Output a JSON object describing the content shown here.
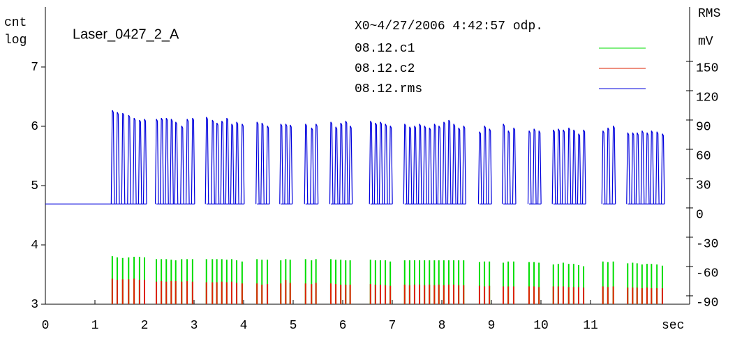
{
  "chart_data": {
    "type": "spike",
    "title": "Laser_0427_2_A",
    "subtitle": "X0~4/27/2006 4:42:57 odp.",
    "y_label": [
      "cnt",
      "log"
    ],
    "y2_label": [
      "RMS",
      "mV"
    ],
    "x_label": "sec",
    "xlim": [
      0,
      13
    ],
    "xticks": [
      0,
      1,
      2,
      3,
      4,
      5,
      6,
      7,
      8,
      9,
      10,
      11
    ],
    "ylim": [
      3,
      8
    ],
    "yticks": [
      3,
      4,
      5,
      6,
      7
    ],
    "y2lim": [
      -98.6,
      205
    ],
    "y2ticks": [
      -90,
      -60,
      -30,
      0,
      30,
      60,
      90,
      120,
      150
    ],
    "x": [
      1.35,
      1.45,
      1.56,
      1.68,
      1.79,
      1.9,
      2.0,
      2.24,
      2.34,
      2.44,
      2.54,
      2.63,
      2.75,
      2.86,
      2.97,
      3.25,
      3.37,
      3.46,
      3.56,
      3.66,
      3.76,
      3.86,
      3.97,
      4.27,
      4.37,
      4.48,
      4.75,
      4.85,
      4.94,
      5.25,
      5.37,
      5.46,
      5.76,
      5.86,
      5.96,
      6.06,
      6.15,
      6.56,
      6.66,
      6.76,
      6.86,
      6.96,
      7.25,
      7.35,
      7.45,
      7.55,
      7.65,
      7.75,
      7.85,
      7.94,
      8.04,
      8.14,
      8.24,
      8.34,
      8.44,
      8.76,
      8.86,
      8.96,
      9.24,
      9.34,
      9.45,
      9.76,
      9.86,
      9.96,
      10.25,
      10.35,
      10.45,
      10.56,
      10.66,
      10.76,
      10.86,
      11.25,
      11.35,
      11.46,
      11.75,
      11.85,
      11.94,
      12.04,
      12.14,
      12.23,
      12.34,
      12.45
    ],
    "series": [
      {
        "name": "08.12.c1",
        "color": "#00dd00",
        "axis": "y",
        "values": [
          3.81,
          3.79,
          3.78,
          3.79,
          3.8,
          3.8,
          3.79,
          3.76,
          3.76,
          3.76,
          3.75,
          3.74,
          3.76,
          3.76,
          3.76,
          3.76,
          3.76,
          3.76,
          3.76,
          3.75,
          3.76,
          3.74,
          3.72,
          3.76,
          3.75,
          3.75,
          3.74,
          3.76,
          3.75,
          3.76,
          3.74,
          3.76,
          3.76,
          3.75,
          3.75,
          3.74,
          3.74,
          3.75,
          3.74,
          3.74,
          3.74,
          3.72,
          3.74,
          3.74,
          3.74,
          3.74,
          3.74,
          3.74,
          3.74,
          3.74,
          3.74,
          3.74,
          3.74,
          3.74,
          3.74,
          3.71,
          3.72,
          3.72,
          3.7,
          3.72,
          3.72,
          3.71,
          3.71,
          3.7,
          3.67,
          3.68,
          3.7,
          3.68,
          3.68,
          3.66,
          3.64,
          3.72,
          3.71,
          3.72,
          3.69,
          3.7,
          3.69,
          3.67,
          3.68,
          3.68,
          3.67,
          3.65
        ]
      },
      {
        "name": "08.12.c2",
        "color": "#dd2200",
        "axis": "y",
        "values": [
          3.43,
          3.41,
          3.42,
          3.42,
          3.43,
          3.41,
          3.41,
          3.38,
          3.39,
          3.38,
          3.39,
          3.39,
          3.38,
          3.39,
          3.38,
          3.37,
          3.37,
          3.37,
          3.38,
          3.37,
          3.38,
          3.36,
          3.35,
          3.35,
          3.33,
          3.34,
          3.35,
          3.41,
          3.36,
          3.35,
          3.34,
          3.36,
          3.35,
          3.34,
          3.33,
          3.33,
          3.33,
          3.34,
          3.33,
          3.33,
          3.32,
          3.31,
          3.33,
          3.32,
          3.33,
          3.33,
          3.32,
          3.33,
          3.32,
          3.33,
          3.32,
          3.33,
          3.33,
          3.32,
          3.32,
          3.31,
          3.3,
          3.31,
          3.3,
          3.3,
          3.3,
          3.3,
          3.3,
          3.29,
          3.3,
          3.3,
          3.3,
          3.29,
          3.29,
          3.29,
          3.28,
          3.3,
          3.29,
          3.3,
          3.28,
          3.28,
          3.28,
          3.27,
          3.28,
          3.27,
          3.27,
          3.27
        ]
      },
      {
        "name": "08.12.rms",
        "color": "#0000dd",
        "axis": "y2",
        "baseline": 4,
        "values": [
          100,
          98,
          97,
          95,
          92,
          90,
          91,
          91,
          92,
          92,
          91,
          88,
          84,
          91,
          92,
          93,
          90,
          87,
          89,
          92,
          86,
          88,
          86,
          88,
          87,
          84,
          86,
          86,
          85,
          86,
          82,
          86,
          88,
          83,
          87,
          89,
          84,
          89,
          87,
          88,
          86,
          84,
          86,
          83,
          84,
          86,
          84,
          82,
          86,
          84,
          88,
          90,
          86,
          82,
          84,
          78,
          84,
          81,
          86,
          79,
          82,
          79,
          81,
          79,
          80,
          81,
          80,
          82,
          80,
          76,
          80,
          79,
          82,
          84,
          77,
          77,
          77,
          79,
          77,
          79,
          78,
          76
        ]
      }
    ]
  }
}
